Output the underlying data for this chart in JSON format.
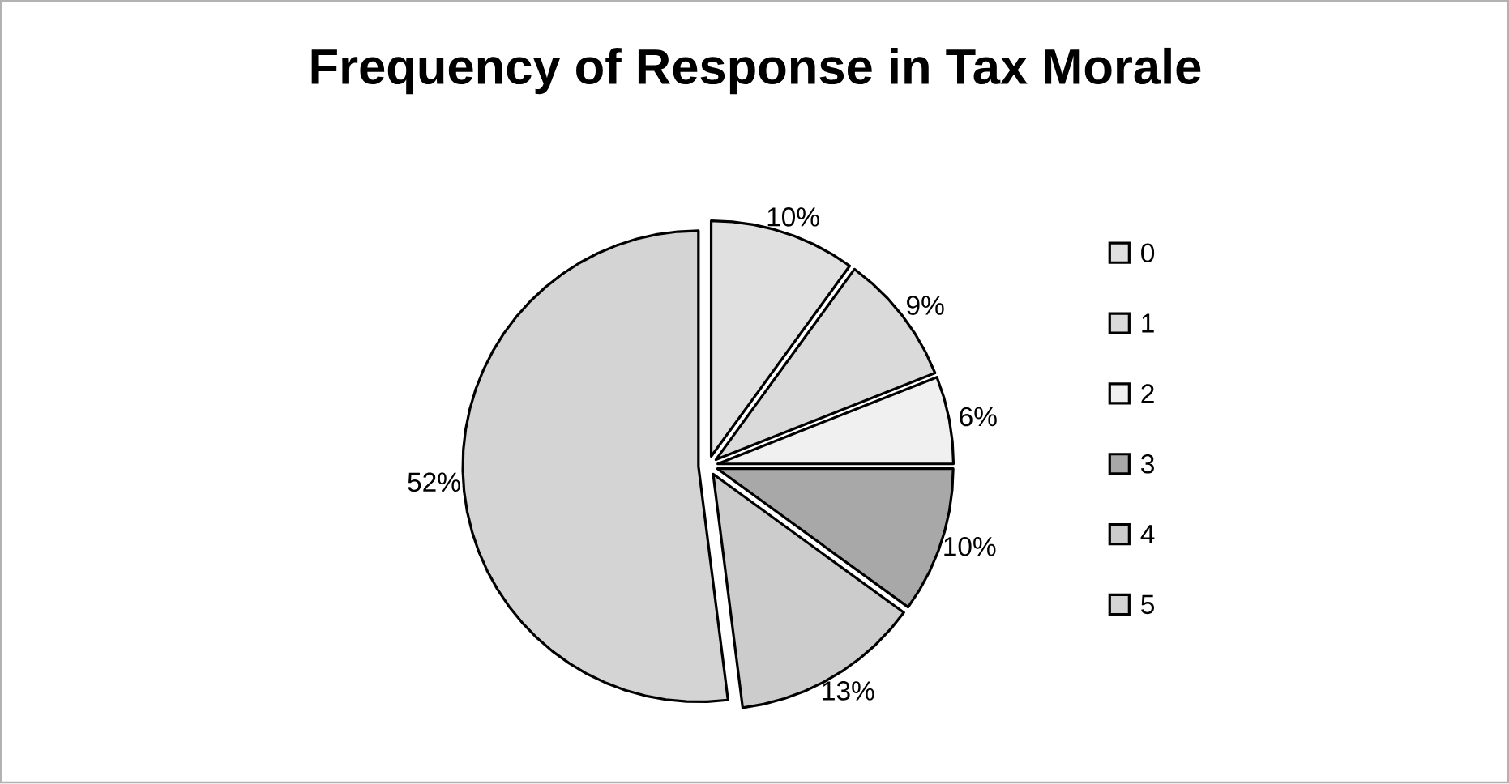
{
  "chart_data": {
    "type": "pie",
    "title": "Frequency of Response in Tax Morale",
    "categories": [
      "0",
      "1",
      "2",
      "3",
      "4",
      "5"
    ],
    "values": [
      10,
      9,
      6,
      10,
      13,
      52
    ],
    "colors": [
      "#e0e0e0",
      "#dadada",
      "#f0f0f0",
      "#a8a8a8",
      "#cccccc",
      "#d4d4d4"
    ],
    "value_labels": [
      "10%",
      "9%",
      "6%",
      "10%",
      "13%",
      "52%"
    ],
    "legend": "right"
  }
}
